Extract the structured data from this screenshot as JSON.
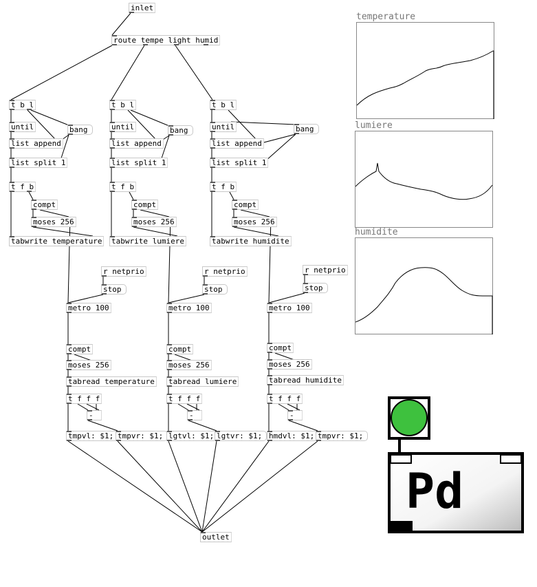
{
  "patch": {
    "inlet": "inlet",
    "route": "route tempe light humid",
    "outlet": "outlet",
    "columns": [
      {
        "tbl": "t b l",
        "until": "until",
        "bang": "bang",
        "append": "list append",
        "split": "list split 1",
        "tfb": "t f b",
        "compt": "compt",
        "moses": "moses 256",
        "tabwrite": "tabwrite temperature"
      },
      {
        "tbl": "t b l",
        "until": "until",
        "bang": "bang",
        "append": "list append",
        "split": "list split 1",
        "tfb": "t f b",
        "compt": "compt",
        "moses": "moses 256",
        "tabwrite": "tabwrite lumiere"
      },
      {
        "tbl": "t b l",
        "until": "until",
        "bang": "bang",
        "append": "list append",
        "split": "list split 1",
        "tfb": "t f b",
        "compt": "compt",
        "moses": "moses 256",
        "tabwrite": "tabwrite humidite"
      }
    ],
    "readers": [
      {
        "netprio": "r netprio",
        "stop": "stop",
        "metro": "metro 100",
        "compt": "compt",
        "moses": "moses 256",
        "tabread": "tabread temperature",
        "tfff": "t f f f",
        "minus": "-",
        "msg1": "tmpvl: $1;",
        "msg2": "tmpvr: $1;"
      },
      {
        "netprio": "r netprio",
        "stop": "stop",
        "metro": "metro 100",
        "compt": "compt",
        "moses": "moses 256",
        "tabread": "tabread lumiere",
        "tfff": "t f f f",
        "minus": "-",
        "msg1": "lgtvl: $1;",
        "msg2": "lgtvr: $1;"
      },
      {
        "netprio": "r netprio",
        "stop": "stop",
        "metro": "metro 100",
        "compt": "compt",
        "moses": "moses 256",
        "tabread": "tabread humidite",
        "tfff": "t f f f",
        "minus": "-",
        "msg1": "hmdvl: $1;",
        "msg2": "tmpvr: $1;"
      }
    ]
  },
  "graphs": [
    {
      "label": "temperature"
    },
    {
      "label": "lumiere"
    },
    {
      "label": "humidite"
    }
  ],
  "logo": {
    "text": "Pd",
    "green": "#3ec13e"
  }
}
